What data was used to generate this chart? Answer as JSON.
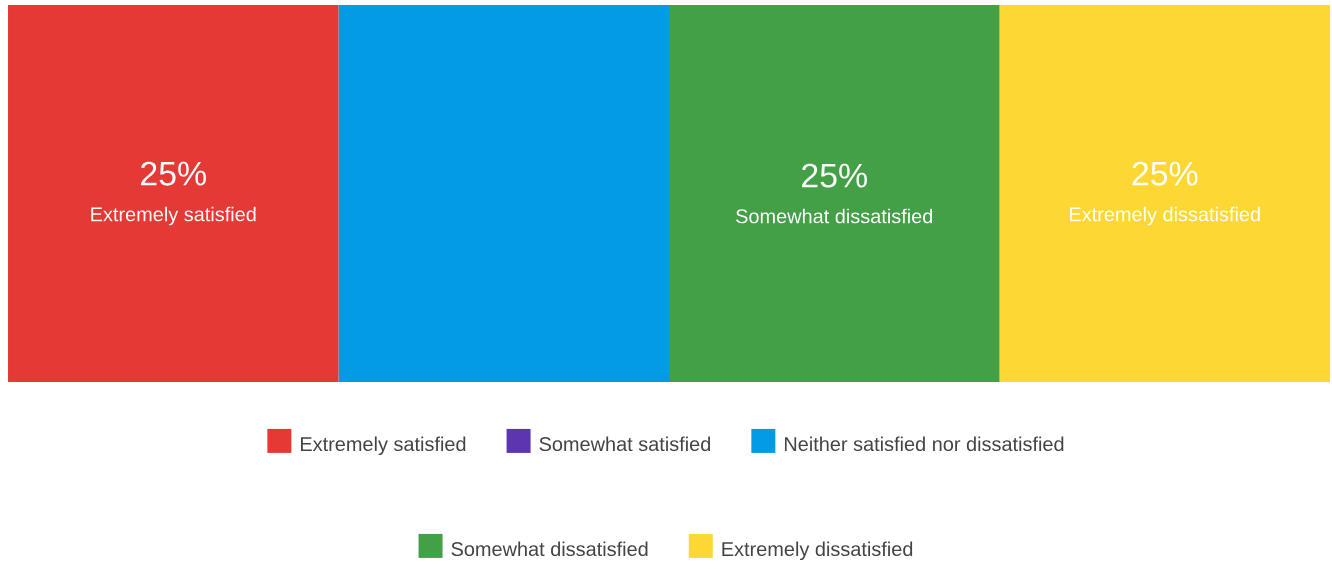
{
  "chart_data": {
    "type": "bar",
    "stacked": true,
    "orientation": "horizontal",
    "categories": [
      null
    ],
    "legend": "bottom",
    "grid": false,
    "series": [
      {
        "name": "Extremely satisfied",
        "color": "#e53935",
        "values": [
          25
        ],
        "value_labels": [
          "25%"
        ]
      },
      {
        "name": "Somewhat satisfied",
        "color": "#5e35b1",
        "values": [
          0
        ],
        "value_labels": [
          null
        ]
      },
      {
        "name": "Neither satisfied nor dissatisfied",
        "color": "#039be5",
        "values": [
          25
        ],
        "value_labels": [
          null
        ]
      },
      {
        "name": "Somewhat dissatisfied",
        "color": "#43a047",
        "values": [
          25
        ],
        "value_labels": [
          "25%"
        ]
      },
      {
        "name": "Extremely dissatisfied",
        "color": "#fdd835",
        "values": [
          25
        ],
        "value_labels": [
          "25%"
        ]
      }
    ]
  }
}
